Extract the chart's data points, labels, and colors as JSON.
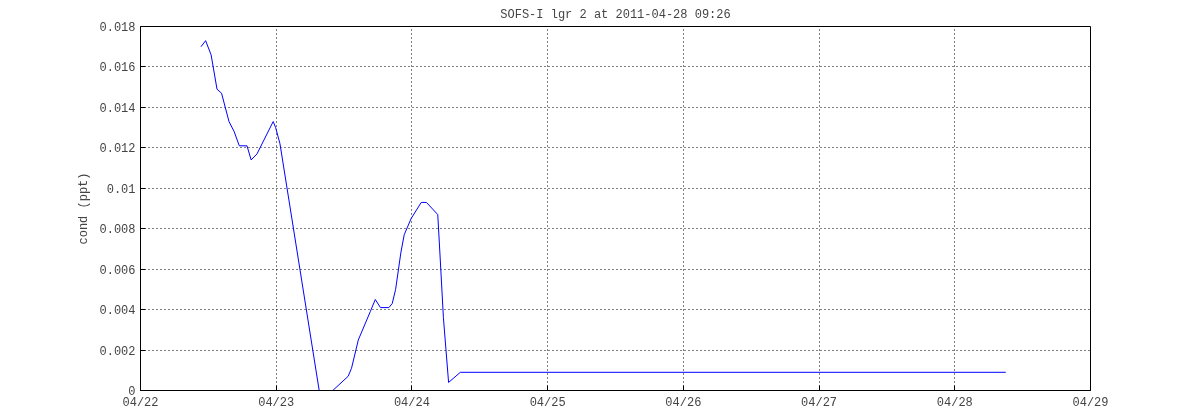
{
  "chart_data": {
    "type": "line",
    "title": "SOFS-I lgr 2 at 2011-04-28 09:26",
    "ylabel": "cond (ppt)",
    "x": [
      "2011-04-22T10:42",
      "2011-04-22T11:31",
      "2011-04-22T12:29",
      "2011-04-22T13:32",
      "2011-04-22T14:20",
      "2011-04-22T15:39",
      "2011-04-22T16:34",
      "2011-04-22T17:28",
      "2011-04-22T18:50",
      "2011-04-22T19:34",
      "2011-04-22T20:36",
      "2011-04-22T23:28",
      "2011-04-22T23:54",
      "2011-04-23T00:40",
      "2011-04-23T07:36",
      "2011-04-23T10:00",
      "2011-04-23T12:43",
      "2011-04-23T13:19",
      "2011-04-23T14:31",
      "2011-04-23T16:38",
      "2011-04-23T17:31",
      "2011-04-23T18:26",
      "2011-04-23T19:55",
      "2011-04-23T20:31",
      "2011-04-23T21:07",
      "2011-04-23T22:02",
      "2011-04-23T22:38",
      "2011-04-23T23:51",
      "2011-04-24T01:39",
      "2011-04-24T02:34",
      "2011-04-24T04:34",
      "2011-04-24T04:58",
      "2011-04-24T05:34",
      "2011-04-24T06:29",
      "2011-04-24T08:34",
      "2011-04-28T09:01"
    ],
    "series": [
      {
        "color": "#0000ff",
        "values": [
          0.017,
          0.0173,
          0.0166,
          0.0149,
          0.0147,
          0.0133,
          0.0128,
          0.0121,
          0.0121,
          0.0114,
          0.0117,
          0.0133,
          0.013,
          0.0122,
          0.0,
          0.0,
          0.0007,
          0.0011,
          0.0025,
          0.0039,
          0.0045,
          0.0041,
          0.0041,
          0.0043,
          0.005,
          0.0068,
          0.0077,
          0.0085,
          0.0093,
          0.0093,
          0.0087,
          0.0067,
          0.0036,
          0.0004,
          0.0009,
          0.0009
        ]
      }
    ],
    "xlim": [
      "2011-04-22",
      "2011-04-29"
    ],
    "xticks": [
      {
        "value": "2011-04-22",
        "label": "04/22"
      },
      {
        "value": "2011-04-23",
        "label": "04/23"
      },
      {
        "value": "2011-04-24",
        "label": "04/24"
      },
      {
        "value": "2011-04-25",
        "label": "04/25"
      },
      {
        "value": "2011-04-26",
        "label": "04/26"
      },
      {
        "value": "2011-04-27",
        "label": "04/27"
      },
      {
        "value": "2011-04-28",
        "label": "04/28"
      },
      {
        "value": "2011-04-29",
        "label": "04/29"
      }
    ],
    "ylim": [
      0,
      0.018
    ],
    "yticks": [
      0,
      0.002,
      0.004,
      0.006,
      0.008,
      0.01,
      0.012,
      0.014,
      0.016,
      0.018
    ],
    "grid": true,
    "marker": "none",
    "line_style": "solid"
  }
}
